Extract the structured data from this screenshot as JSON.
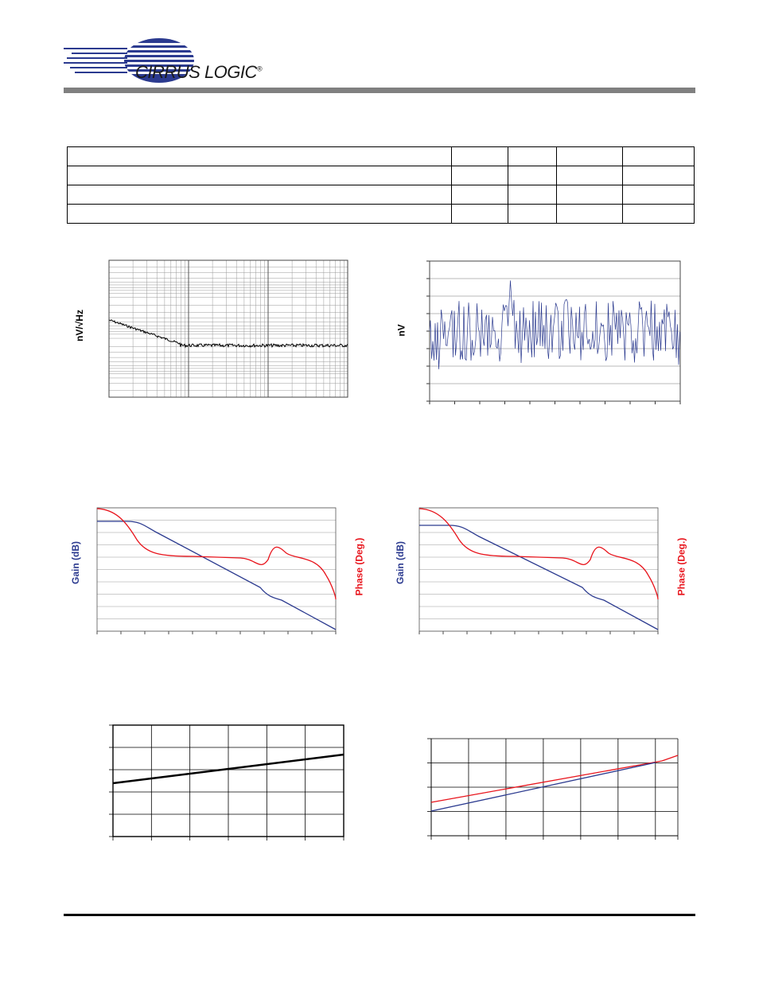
{
  "header": {
    "logo_name": "CIRRUS LOGIC",
    "logo_mark": "®",
    "colors": {
      "logo_blue": "#2b3a8f",
      "bar_gray": "#808080"
    }
  },
  "spec_table": {
    "rows": [
      [
        "",
        "",
        "",
        "",
        ""
      ],
      [
        "",
        "",
        "",
        "",
        ""
      ],
      [
        "",
        "",
        "",
        "",
        ""
      ],
      [
        "",
        "",
        "",
        "",
        ""
      ]
    ]
  },
  "chart_data": [
    {
      "type": "line",
      "ylabel": "nV/√Hz",
      "xscale": "log",
      "grid": true,
      "series": [
        {
          "color": "#000000",
          "description_points": [
            [
              0.1,
              0.62
            ],
            [
              1,
              0.47
            ],
            [
              10,
              0.42
            ],
            [
              100,
              0.41
            ],
            [
              1000,
              0.41
            ]
          ]
        }
      ]
    },
    {
      "type": "line",
      "ylabel": "nV",
      "grid": true,
      "series": [
        {
          "color": "#2b3a8f"
        }
      ]
    },
    {
      "type": "line",
      "ylabel": "Gain (dB)",
      "y2label": "Phase (Deg.)",
      "xscale": "log",
      "grid": true,
      "series": [
        {
          "axis": "gain",
          "color": "#2b3a8f"
        },
        {
          "axis": "phase",
          "color": "#e8141c"
        }
      ]
    },
    {
      "type": "line",
      "ylabel": "Gain (dB)",
      "y2label": "Phase (Deg.)",
      "xscale": "log",
      "grid": true,
      "series": [
        {
          "axis": "gain",
          "color": "#2b3a8f"
        },
        {
          "axis": "phase",
          "color": "#e8141c"
        }
      ]
    },
    {
      "type": "line",
      "grid": true,
      "series": [
        {
          "color": "#000000"
        }
      ]
    },
    {
      "type": "line",
      "grid": true,
      "series": [
        {
          "color": "#e8141c"
        },
        {
          "color": "#2b3a8f"
        }
      ]
    }
  ]
}
